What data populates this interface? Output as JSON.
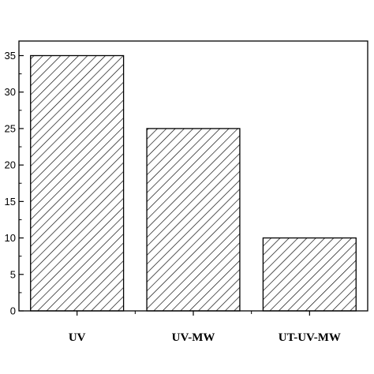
{
  "chart_data": {
    "type": "bar",
    "title": "",
    "xlabel": "",
    "ylabel": "",
    "categories": [
      "UV",
      "UV-MW",
      "UT-UV-MW"
    ],
    "values": [
      35,
      25,
      10
    ],
    "ylim": [
      0,
      37
    ],
    "yticks": [
      0,
      5,
      10,
      15,
      20,
      25,
      30,
      35
    ],
    "ytick_labels": [
      "0",
      "5",
      "10",
      "15",
      "20",
      "25",
      "30",
      "35"
    ],
    "fill_pattern": "diagonal-hatch",
    "bar_color": "#000000",
    "background": "#ffffff",
    "grid": false,
    "legend": "none"
  }
}
